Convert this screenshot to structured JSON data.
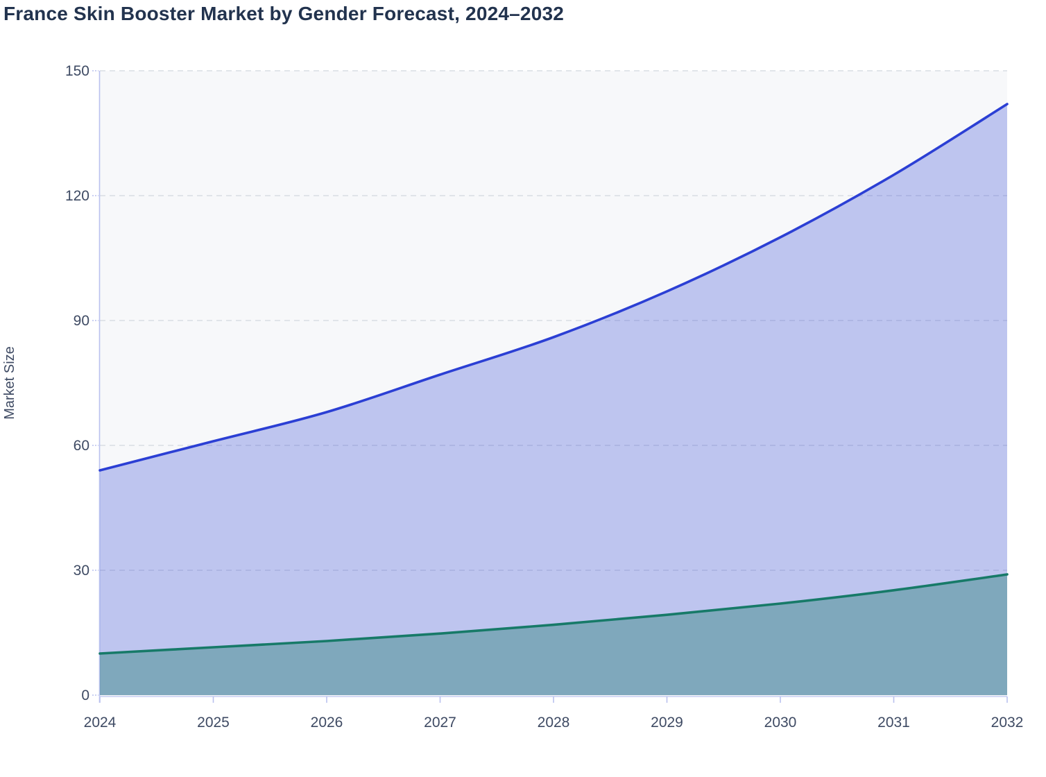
{
  "chart_data": {
    "type": "area",
    "title": "France Skin Booster Market by Gender Forecast, 2024–2032",
    "xlabel": "",
    "ylabel": "Market Size",
    "x": [
      2024,
      2025,
      2026,
      2027,
      2028,
      2029,
      2030,
      2031,
      2032
    ],
    "series": [
      {
        "name": "series-blue",
        "values": [
          54,
          61,
          68,
          77,
          86,
          97,
          110,
          125,
          142
        ],
        "line_color": "#2b3fd4",
        "fill_color": "rgba(43,63,212,0.28)"
      },
      {
        "name": "series-teal",
        "values": [
          10,
          11.5,
          13,
          14.8,
          16.9,
          19.3,
          22,
          25.2,
          29
        ],
        "line_color": "#177a68",
        "fill_color": "rgba(23,122,106,0.38)"
      }
    ],
    "ylim": [
      0,
      150
    ],
    "yticks": [
      0,
      30,
      60,
      90,
      120,
      150
    ],
    "grid": "horizontal-dashed",
    "legend": "none"
  },
  "colors": {
    "title": "#22334e",
    "tick_label": "#3e4a63",
    "grid_line": "#d9dde3",
    "axis_line": "#b9c1ee",
    "x_axis_line": "#c6cdf2",
    "plot_background": "#f7f8fa"
  }
}
